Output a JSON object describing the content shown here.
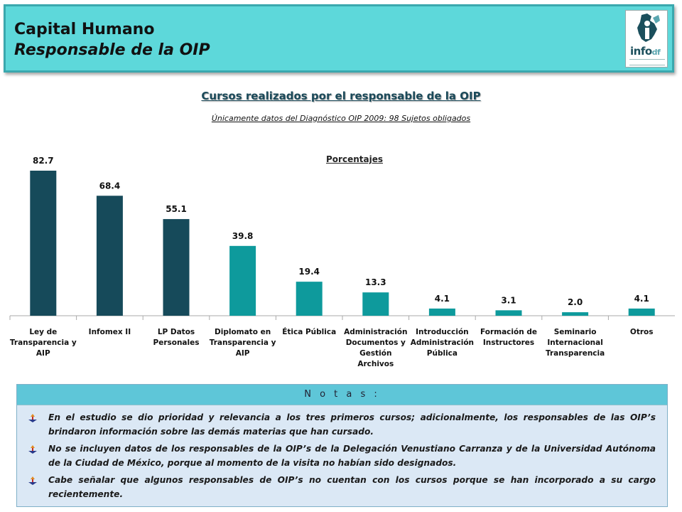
{
  "header": {
    "title": "Capital Humano",
    "subtitle": "Responsable de la OIP",
    "logo_text": "info",
    "logo_suffix": "df"
  },
  "chart_data": {
    "type": "bar",
    "title": "Cursos realizados por el responsable de la OIP",
    "subtitle": "Únicamente datos del Diagnóstico OIP 2009: 98 Sujetos obligados",
    "unit_label": "Porcentajes",
    "categories": [
      "Ley de Transparencia y AIP",
      "Infomex II",
      "LP Datos Personales",
      "Diplomato en Transparencia y AIP",
      "Ética Pública",
      "Administración Documentos y Gestión Archivos",
      "Introducción Administración Pública",
      "Formación de Instructores",
      "Seminario Internacional Transparencia",
      "Otros"
    ],
    "category_lines": [
      [
        "Ley de",
        "Transparencia y",
        "AIP"
      ],
      [
        "Infomex II"
      ],
      [
        "LP Datos",
        "Personales"
      ],
      [
        "Diplomato en",
        "Transparencia y",
        "AIP"
      ],
      [
        "Ética Pública"
      ],
      [
        "Administración",
        "Documentos y",
        "Gestión",
        "Archivos"
      ],
      [
        "Introducción",
        "Administración",
        "Pública"
      ],
      [
        "Formación de",
        "Instructores"
      ],
      [
        "Seminario",
        "Internacional",
        "Transparencia"
      ],
      [
        "Otros"
      ]
    ],
    "values": [
      82.7,
      68.4,
      55.1,
      39.8,
      19.4,
      13.3,
      4.1,
      3.1,
      2.0,
      4.1
    ],
    "value_labels": [
      "82.7",
      "68.4",
      "55.1",
      "39.8",
      "19.4",
      "13.3",
      "4.1",
      "3.1",
      "2.0",
      "4.1"
    ],
    "ylim": [
      0,
      100
    ],
    "grid": false,
    "colors": [
      "#164a5a",
      "#164a5a",
      "#164a5a",
      "#0e9a9c",
      "#0e9a9c",
      "#0e9a9c",
      "#0e9a9c",
      "#0e9a9c",
      "#0e9a9c",
      "#0e9a9c"
    ]
  },
  "notes": {
    "heading": "N o t a s :",
    "items": [
      "En el estudio se dio prioridad y relevancia a los tres primeros cursos; adicionalmente, los responsables de las OIP’s brindaron información sobre las demás materias que han cursado.",
      "No se incluyen datos de los responsables de la OIP’s de la Delegación Venustiano Carranza y de la Universidad Autónoma de la Ciudad de México, porque al momento de la visita no habían sido designados.",
      "Cabe señalar que algunos responsables de OIP’s no cuentan con los cursos porque se han incorporado a su cargo recientemente."
    ],
    "bullet_icon": "arrow-bullet-icon"
  },
  "colors": {
    "header_bg": "#5dd8da",
    "dark_bar": "#164a5a",
    "light_bar": "#0e9a9c",
    "notes_bg": "#dbe8f5",
    "notes_head": "#5ec6d8"
  }
}
